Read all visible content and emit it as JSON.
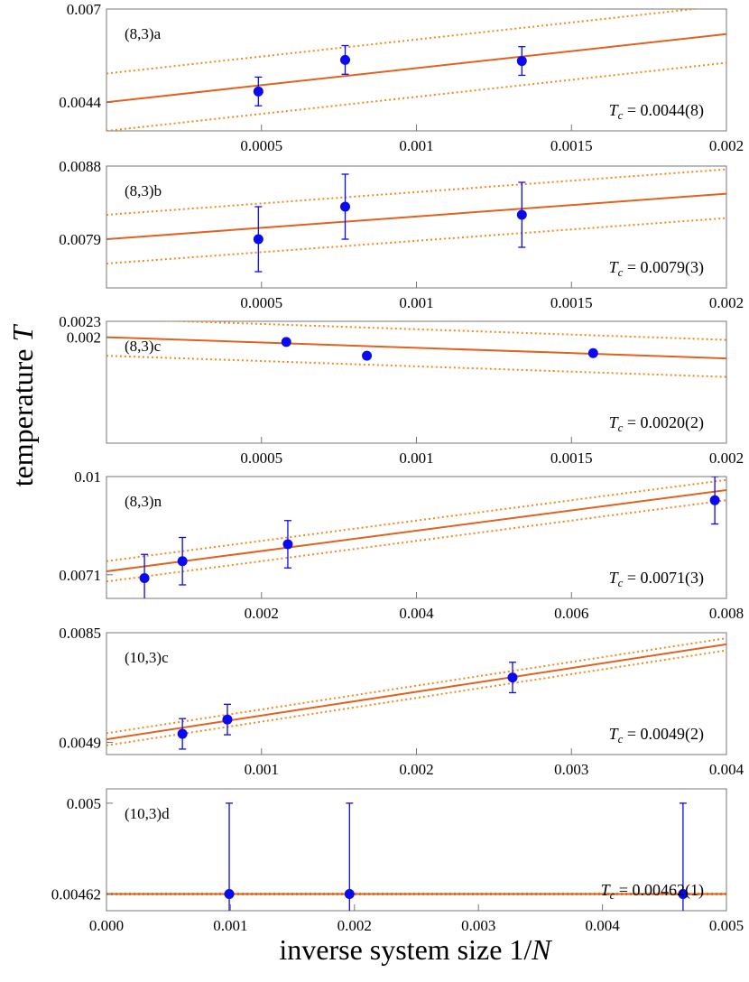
{
  "figure": {
    "ylabel_prefix": "temperature ",
    "ylabel_var": "T",
    "xlabel_prefix": "inverse system size 1/",
    "xlabel_var": "N",
    "colors": {
      "fit": "#e0621e",
      "band": "#f28a1e",
      "points": "#0a0af0",
      "frame": "#777777"
    }
  },
  "chart_data": [
    {
      "type": "scatter",
      "panel_label": "(8,3)a",
      "tc_value": "0.0044(8)",
      "xlim": [
        0,
        0.002
      ],
      "ylim": [
        0.0036,
        0.007
      ],
      "yticks": [
        0.0044,
        0.007
      ],
      "ytick_labels": [
        "0.0044",
        "0.007"
      ],
      "xticks": [
        0.0005,
        0.001,
        0.0015,
        0.002
      ],
      "xtick_labels": [
        "0.0005",
        "0.001",
        "0.0015",
        "0.002"
      ],
      "fit": {
        "y0": 0.0044,
        "slope": 0.95
      },
      "band_offset": 0.0008,
      "points": [
        {
          "x": 0.00049,
          "y": 0.0047,
          "err": 0.0004
        },
        {
          "x": 0.00077,
          "y": 0.00558,
          "err": 0.0004
        },
        {
          "x": 0.00134,
          "y": 0.00555,
          "err": 0.0004
        }
      ]
    },
    {
      "type": "scatter",
      "panel_label": "(8,3)b",
      "tc_value": "0.0079(3)",
      "xlim": [
        0,
        0.002
      ],
      "ylim": [
        0.0073,
        0.0088
      ],
      "yticks": [
        0.0079,
        0.0088
      ],
      "ytick_labels": [
        "0.0079",
        "0.0088"
      ],
      "xticks": [
        0.0005,
        0.001,
        0.0015,
        0.002
      ],
      "xtick_labels": [
        "0.0005",
        "0.001",
        "0.0015",
        "0.002"
      ],
      "fit": {
        "y0": 0.0079,
        "slope": 0.28
      },
      "band_offset": 0.0003,
      "points": [
        {
          "x": 0.00049,
          "y": 0.0079,
          "err": 0.0004
        },
        {
          "x": 0.00077,
          "y": 0.0083,
          "err": 0.0004
        },
        {
          "x": 0.00134,
          "y": 0.0082,
          "err": 0.0004
        }
      ]
    },
    {
      "type": "scatter",
      "panel_label": "(8,3)c",
      "tc_value": "0.0020(2)",
      "xlim": [
        0,
        0.002
      ],
      "ylim": [
        0.0,
        0.0023
      ],
      "yticks": [
        0.002,
        0.0023
      ],
      "ytick_labels": [
        "0.002",
        "0.0023"
      ],
      "xticks": [
        0.0005,
        0.001,
        0.0015,
        0.002
      ],
      "xtick_labels": [
        "0.0005",
        "0.001",
        "0.0015",
        "0.002"
      ],
      "fit": {
        "y0": 0.002,
        "slope": -0.2
      },
      "band_offset": 0.00035,
      "points": [
        {
          "x": 0.00058,
          "y": 0.00191
        },
        {
          "x": 0.00084,
          "y": 0.00165
        },
        {
          "x": 0.00157,
          "y": 0.0017
        }
      ]
    },
    {
      "type": "scatter",
      "panel_label": "(8,3)n",
      "tc_value": "0.0071(3)",
      "xlim": [
        0,
        0.008
      ],
      "ylim": [
        0.0064,
        0.01
      ],
      "yticks": [
        0.0071,
        0.01
      ],
      "ytick_labels": [
        "0.0071",
        "0.01"
      ],
      "xticks": [
        0.002,
        0.004,
        0.006,
        0.008
      ],
      "xtick_labels": [
        "0.002",
        "0.004",
        "0.006",
        "0.008"
      ],
      "fit": {
        "y0": 0.0072,
        "slope": 0.3
      },
      "band_offset": 0.0003,
      "points": [
        {
          "x": 0.00049,
          "y": 0.007,
          "err": 0.0007
        },
        {
          "x": 0.00098,
          "y": 0.0075,
          "err": 0.0007
        },
        {
          "x": 0.00234,
          "y": 0.008,
          "err": 0.0007
        },
        {
          "x": 0.00785,
          "y": 0.0093,
          "err": 0.0007
        }
      ]
    },
    {
      "type": "scatter",
      "panel_label": "(10,3)c",
      "tc_value": "0.0049(2)",
      "xlim": [
        0,
        0.004
      ],
      "ylim": [
        0.0045,
        0.0085
      ],
      "yticks": [
        0.0049,
        0.0085
      ],
      "ytick_labels": [
        "0.0049",
        "0.0085"
      ],
      "xticks": [
        0.001,
        0.002,
        0.003,
        0.004
      ],
      "xtick_labels": [
        "0.001",
        "0.002",
        "0.003",
        "0.004"
      ],
      "fit": {
        "y0": 0.005,
        "slope": 0.78
      },
      "band_offset": 0.0002,
      "points": [
        {
          "x": 0.00049,
          "y": 0.00518,
          "err": 0.0005
        },
        {
          "x": 0.00078,
          "y": 0.00565,
          "err": 0.0005
        },
        {
          "x": 0.00262,
          "y": 0.00703,
          "err": 0.0005
        }
      ]
    },
    {
      "type": "scatter",
      "panel_label": "(10,3)d",
      "tc_value": "0.00462(1)",
      "xlim": [
        0,
        0.005
      ],
      "ylim": [
        0.00455,
        0.00506
      ],
      "yticks": [
        0.00462,
        0.005
      ],
      "ytick_labels": [
        "0.00462",
        "0.005"
      ],
      "xticks": [
        0.0,
        0.001,
        0.002,
        0.003,
        0.004,
        0.005
      ],
      "xtick_labels": [
        "0.000",
        "0.001",
        "0.002",
        "0.003",
        "0.004",
        "0.005"
      ],
      "fit": {
        "y0": 0.00462,
        "slope": 0.0
      },
      "band_offset": 2e-06,
      "points": [
        {
          "x": 0.00099,
          "y": 0.00462,
          "err": 0.00038
        },
        {
          "x": 0.00196,
          "y": 0.00462,
          "err": 0.00038
        },
        {
          "x": 0.00465,
          "y": 0.00462,
          "err": 0.00038
        }
      ]
    }
  ]
}
